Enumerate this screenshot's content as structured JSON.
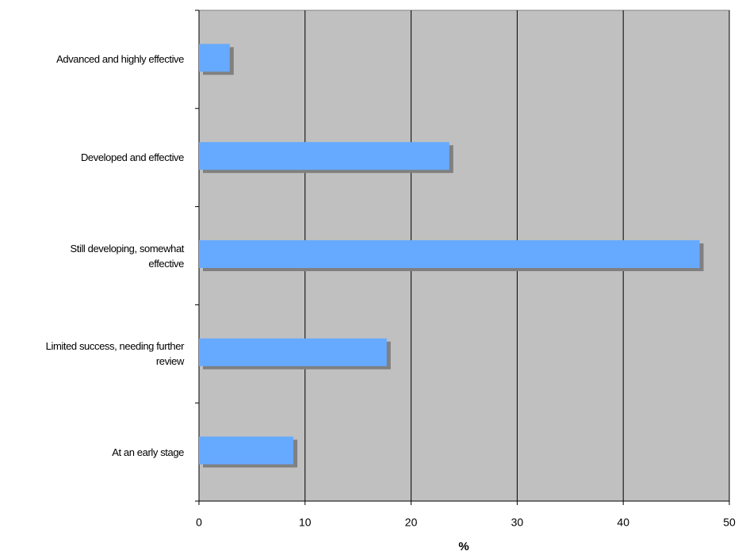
{
  "chart_data": {
    "type": "barh",
    "categories": [
      "Advanced and highly effective",
      "Developed and effective",
      "Still developing, somewhat effective",
      "Limited success, needing further review",
      "At an early stage"
    ],
    "values": [
      2.9,
      23.6,
      47.2,
      17.7,
      8.9
    ],
    "color": "#66aaff",
    "xlabel": "%",
    "xlim": [
      0,
      50
    ],
    "xticks": [
      0,
      10,
      20,
      30,
      40,
      50
    ],
    "grid": true
  }
}
